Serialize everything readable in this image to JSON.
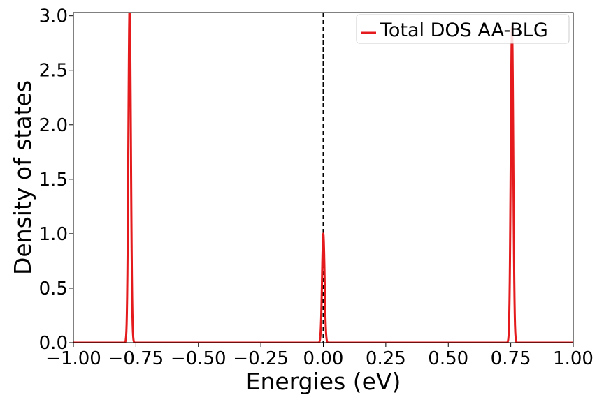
{
  "chart_data": {
    "type": "line",
    "xlabel": "Energies (eV)",
    "ylabel": "Density of states",
    "xlim": [
      -1.0,
      1.0
    ],
    "ylim": [
      0.0,
      3.03
    ],
    "xticks": [
      -1.0,
      -0.75,
      -0.5,
      -0.25,
      0.0,
      0.25,
      0.5,
      0.75,
      1.0
    ],
    "xtick_labels": [
      "−1.00",
      "−0.75",
      "−0.50",
      "−0.25",
      "0.00",
      "0.25",
      "0.50",
      "0.75",
      "1.00"
    ],
    "yticks": [
      0.0,
      0.5,
      1.0,
      1.5,
      2.0,
      2.5,
      3.0
    ],
    "ytick_labels": [
      "0.0",
      "0.5",
      "1.0",
      "1.5",
      "2.0",
      "2.5",
      "3.0"
    ],
    "grid": false,
    "legend_position": "top-right",
    "series": [
      {
        "name": "Total DOS AA-BLG",
        "color": "#e41a1c",
        "peaks": [
          {
            "center": -0.775,
            "height": 3.1,
            "width": 0.005
          },
          {
            "center": 0.0,
            "height": 1.0,
            "width": 0.005
          },
          {
            "center": 0.755,
            "height": 2.9,
            "width": 0.005
          }
        ]
      }
    ],
    "fermi_level": {
      "x": 0.0,
      "color": "#000000",
      "style": "dashed"
    }
  }
}
